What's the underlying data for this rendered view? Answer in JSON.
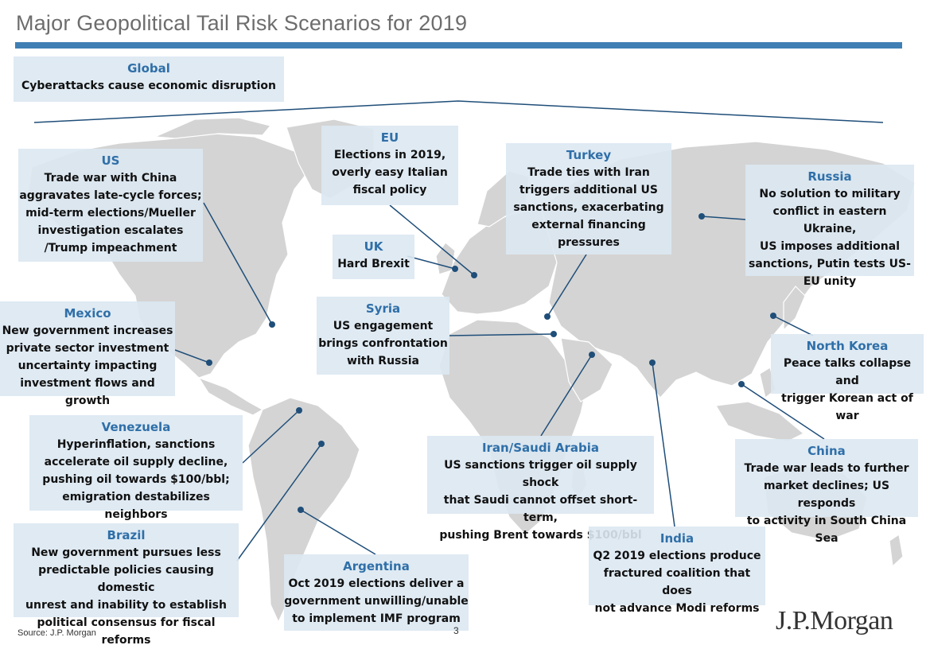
{
  "title": "Major Geopolitical Tail Risk Scenarios for 2019",
  "colors": {
    "accent": "#3f7fb4",
    "header_text": "#2f6fa8",
    "box_bg": "#dbe8f2",
    "land": "#d4d4d4",
    "connector": "#1f4e79"
  },
  "boxes": {
    "global": {
      "heading": "Global",
      "text": "Cyberattacks cause economic disruption"
    },
    "us": {
      "heading": "US",
      "text": "Trade war with China\naggravates late-cycle forces;\nmid-term elections/Mueller\ninvestigation escalates\n/Trump impeachment"
    },
    "eu": {
      "heading": "EU",
      "text": "Elections in 2019,\noverly easy Italian\nfiscal policy"
    },
    "turkey": {
      "heading": "Turkey",
      "text": "Trade ties with Iran\ntriggers additional US\nsanctions, exacerbating\nexternal financing\npressures"
    },
    "russia": {
      "heading": "Russia",
      "text": "No solution to military\nconflict in eastern Ukraine,\nUS imposes additional\nsanctions, Putin tests US-\nEU unity"
    },
    "uk": {
      "heading": "UK",
      "text": "Hard Brexit"
    },
    "mexico": {
      "heading": "Mexico",
      "text": "New government increases\nprivate sector investment\nuncertainty impacting\ninvestment flows and growth"
    },
    "syria": {
      "heading": "Syria",
      "text": "US engagement\nbrings confrontation\nwith Russia"
    },
    "north_korea": {
      "heading": "North Korea",
      "text": "Peace talks collapse and\ntrigger Korean act of war"
    },
    "venezuela": {
      "heading": "Venezuela",
      "text": "Hyperinflation, sanctions\naccelerate oil supply decline,\npushing oil towards $100/bbl;\nemigration destabilizes neighbors"
    },
    "iran_saudi": {
      "heading": "Iran/Saudi Arabia",
      "text": "US sanctions trigger oil supply shock\nthat Saudi cannot offset short-term,\npushing Brent towards $100/bbl"
    },
    "china": {
      "heading": "China",
      "text": "Trade war leads to further\nmarket declines; US responds\nto activity in South China Sea"
    },
    "brazil": {
      "heading": "Brazil",
      "text": "New government pursues less\npredictable policies causing domestic\nunrest and inability to establish\npolitical consensus for fiscal reforms"
    },
    "argentina": {
      "heading": "Argentina",
      "text": "Oct 2019 elections deliver a\ngovernment unwilling/unable\nto implement IMF program"
    },
    "india": {
      "heading": "India",
      "text": "Q2 2019 elections produce\nfractured coalition that does\nnot advance Modi reforms"
    }
  },
  "footer": {
    "source": "Source:  J.P. Morgan",
    "page_number": "3",
    "logo_text": "J.P.Morgan"
  }
}
